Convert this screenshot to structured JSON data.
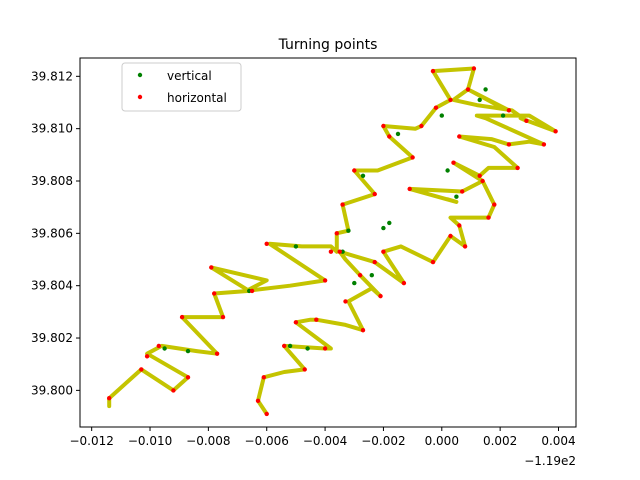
{
  "chart_data": {
    "type": "line",
    "title": "Turning points",
    "xlabel": "",
    "ylabel": "",
    "x_offset_label": "−1.19e2",
    "xlim": [
      -0.0124,
      0.0046
    ],
    "ylim": [
      39.7986,
      39.8127
    ],
    "x_ticks": [
      -0.012,
      -0.01,
      -0.008,
      -0.006,
      -0.004,
      -0.002,
      0.0,
      0.002,
      0.004
    ],
    "x_tick_labels": [
      "−0.012",
      "−0.010",
      "−0.008",
      "−0.006",
      "−0.004",
      "−0.002",
      "0.000",
      "0.002",
      "0.004"
    ],
    "y_ticks": [
      39.8,
      39.802,
      39.804,
      39.806,
      39.808,
      39.81,
      39.812
    ],
    "y_tick_labels": [
      "39.800",
      "39.802",
      "39.804",
      "39.806",
      "39.808",
      "39.810",
      "39.812"
    ],
    "grid": false,
    "legend_position": "top-left",
    "track_color": "#c4c400",
    "series": [
      {
        "name": "vertical",
        "kind": "marker",
        "color": "#008000"
      },
      {
        "name": "horizontal",
        "kind": "marker",
        "color": "#ff0000"
      }
    ],
    "track1": [
      [
        -0.0114,
        39.7994
      ],
      [
        -0.0114,
        39.7997
      ],
      [
        -0.0103,
        39.8008
      ],
      [
        -0.0092,
        39.8
      ],
      [
        -0.0087,
        39.8005
      ],
      [
        -0.0101,
        39.8014
      ],
      [
        -0.0096,
        39.8017
      ],
      [
        -0.0084,
        39.8015
      ],
      [
        -0.0077,
        39.8014
      ],
      [
        -0.0089,
        39.8028
      ],
      [
        -0.0075,
        39.8028
      ],
      [
        -0.0078,
        39.8037
      ],
      [
        -0.0066,
        39.8038
      ],
      [
        -0.0079,
        39.8047
      ],
      [
        -0.006,
        39.8042
      ],
      [
        -0.0067,
        39.8038
      ],
      [
        -0.0052,
        39.804
      ],
      [
        -0.004,
        39.8042
      ],
      [
        -0.0059,
        39.8056
      ],
      [
        -0.0048,
        39.8055
      ],
      [
        -0.0038,
        39.8055
      ],
      [
        -0.0036,
        39.8053
      ],
      [
        -0.0036,
        39.806
      ],
      [
        -0.0032,
        39.8061
      ],
      [
        -0.0034,
        39.8071
      ],
      [
        -0.0023,
        39.8075
      ],
      [
        -0.003,
        39.8084
      ],
      [
        -0.0022,
        39.8084
      ],
      [
        -0.001,
        39.8089
      ],
      [
        -0.0018,
        39.8097
      ],
      [
        -0.002,
        39.8101
      ],
      [
        -0.0009,
        39.81
      ],
      [
        -0.0007,
        39.8101
      ],
      [
        -0.0002,
        39.8108
      ],
      [
        0.0003,
        39.8111
      ],
      [
        -0.0003,
        39.8122
      ],
      [
        0.0011,
        39.8123
      ],
      [
        0.0009,
        39.8115
      ],
      [
        0.0016,
        39.8111
      ],
      [
        0.0023,
        39.8107
      ],
      [
        0.0019,
        39.8109
      ],
      [
        0.0009,
        39.8115
      ],
      [
        0.0004,
        39.8111
      ],
      [
        0.0012,
        39.8109
      ],
      [
        0.0018,
        39.8108
      ],
      [
        0.0024,
        39.8107
      ],
      [
        0.0029,
        39.8103
      ],
      [
        0.0027,
        39.8104
      ],
      [
        0.0039,
        39.8099
      ],
      [
        0.003,
        39.8105
      ],
      [
        0.002,
        39.8105
      ],
      [
        0.0012,
        39.8105
      ],
      [
        0.0015,
        39.8104
      ],
      [
        0.0035,
        39.8094
      ],
      [
        0.003,
        39.8095
      ],
      [
        0.0023,
        39.8094
      ],
      [
        0.0017,
        39.8096
      ],
      [
        0.0006,
        39.8097
      ],
      [
        0.0018,
        39.8093
      ],
      [
        0.0026,
        39.8085
      ],
      [
        0.0016,
        39.8085
      ],
      [
        0.0013,
        39.8082
      ],
      [
        0.0004,
        39.8087
      ],
      [
        0.0014,
        39.808
      ],
      [
        0.0007,
        39.8076
      ],
      [
        -0.0011,
        39.8077
      ],
      [
        0.0005,
        39.8072
      ],
      [
        0.0002,
        39.8073
      ]
    ],
    "track2": [
      [
        -0.006,
        39.7991
      ],
      [
        -0.0063,
        39.7996
      ],
      [
        -0.0061,
        39.8005
      ],
      [
        -0.0054,
        39.8007
      ],
      [
        -0.0047,
        39.8008
      ],
      [
        -0.0054,
        39.8017
      ],
      [
        -0.004,
        39.8016
      ],
      [
        -0.0038,
        39.8016
      ],
      [
        -0.005,
        39.8026
      ],
      [
        -0.0045,
        39.8027
      ],
      [
        -0.0043,
        39.8027
      ],
      [
        -0.0033,
        39.8025
      ],
      [
        -0.0027,
        39.8023
      ],
      [
        -0.0032,
        39.8034
      ],
      [
        -0.0024,
        39.8039
      ],
      [
        -0.0021,
        39.8036
      ],
      [
        -0.0028,
        39.8044
      ],
      [
        -0.0033,
        39.805
      ],
      [
        -0.0035,
        39.8053
      ],
      [
        -0.0023,
        39.8049
      ],
      [
        -0.0013,
        39.8041
      ],
      [
        -0.002,
        39.8053
      ],
      [
        -0.0014,
        39.8055
      ],
      [
        -0.0003,
        39.8049
      ],
      [
        0.0003,
        39.8059
      ],
      [
        0.0008,
        39.8055
      ],
      [
        0.0006,
        39.8063
      ],
      [
        0.0003,
        39.8066
      ],
      [
        0.0016,
        39.8066
      ],
      [
        0.0018,
        39.8071
      ],
      [
        0.0014,
        39.808
      ]
    ],
    "vertical_points": [
      [
        -0.0095,
        39.8016
      ],
      [
        -0.0087,
        39.8015
      ],
      [
        -0.0066,
        39.8038
      ],
      [
        -0.005,
        39.8055
      ],
      [
        -0.0034,
        39.8053
      ],
      [
        -0.0032,
        39.8061
      ],
      [
        -0.0027,
        39.8082
      ],
      [
        -0.0015,
        39.8098
      ],
      [
        0.0,
        39.8105
      ],
      [
        0.0013,
        39.8111
      ],
      [
        0.0015,
        39.8115
      ],
      [
        0.0021,
        39.8105
      ],
      [
        -0.003,
        39.8041
      ],
      [
        -0.0024,
        39.8044
      ],
      [
        -0.002,
        39.8062
      ],
      [
        -0.0018,
        39.8064
      ],
      [
        0.0002,
        39.8084
      ],
      [
        0.0005,
        39.8074
      ],
      [
        -0.0052,
        39.8017
      ],
      [
        -0.0046,
        39.8016
      ]
    ],
    "horizontal_points": [
      [
        -0.0114,
        39.7997
      ],
      [
        -0.0103,
        39.8008
      ],
      [
        -0.0092,
        39.8
      ],
      [
        -0.0087,
        39.8005
      ],
      [
        -0.0101,
        39.8013
      ],
      [
        -0.0097,
        39.8017
      ],
      [
        -0.0077,
        39.8014
      ],
      [
        -0.0089,
        39.8028
      ],
      [
        -0.0075,
        39.8028
      ],
      [
        -0.0078,
        39.8037
      ],
      [
        -0.0065,
        39.8038
      ],
      [
        -0.0079,
        39.8047
      ],
      [
        -0.006,
        39.8056
      ],
      [
        -0.004,
        39.8042
      ],
      [
        -0.0036,
        39.806
      ],
      [
        -0.0034,
        39.8071
      ],
      [
        -0.0023,
        39.8075
      ],
      [
        -0.003,
        39.8084
      ],
      [
        -0.001,
        39.8089
      ],
      [
        -0.0018,
        39.8097
      ],
      [
        -0.002,
        39.8101
      ],
      [
        -0.0007,
        39.8101
      ],
      [
        -0.0002,
        39.8108
      ],
      [
        0.0003,
        39.8111
      ],
      [
        -0.0003,
        39.8122
      ],
      [
        0.0011,
        39.8123
      ],
      [
        0.0009,
        39.8115
      ],
      [
        0.0023,
        39.8107
      ],
      [
        0.0029,
        39.8103
      ],
      [
        0.0039,
        39.8099
      ],
      [
        0.0035,
        39.8094
      ],
      [
        0.0023,
        39.8094
      ],
      [
        0.0006,
        39.8097
      ],
      [
        0.0026,
        39.8085
      ],
      [
        0.0013,
        39.8082
      ],
      [
        0.0004,
        39.8087
      ],
      [
        0.0014,
        39.808
      ],
      [
        0.0007,
        39.8076
      ],
      [
        -0.0011,
        39.8077
      ],
      [
        -0.006,
        39.7991
      ],
      [
        -0.0063,
        39.7996
      ],
      [
        -0.0061,
        39.8005
      ],
      [
        -0.0047,
        39.8008
      ],
      [
        -0.0054,
        39.8017
      ],
      [
        -0.004,
        39.8016
      ],
      [
        -0.005,
        39.8026
      ],
      [
        -0.0043,
        39.8027
      ],
      [
        -0.0027,
        39.8023
      ],
      [
        -0.0033,
        39.8034
      ],
      [
        -0.0021,
        39.8036
      ],
      [
        -0.0028,
        39.8044
      ],
      [
        -0.0035,
        39.8053
      ],
      [
        -0.0023,
        39.8049
      ],
      [
        -0.0013,
        39.8041
      ],
      [
        -0.002,
        39.8053
      ],
      [
        -0.0003,
        39.8049
      ],
      [
        0.0003,
        39.8059
      ],
      [
        0.0008,
        39.8055
      ],
      [
        0.0006,
        39.8063
      ],
      [
        0.0016,
        39.8066
      ],
      [
        0.0018,
        39.8071
      ],
      [
        -0.0038,
        39.8053
      ]
    ]
  }
}
